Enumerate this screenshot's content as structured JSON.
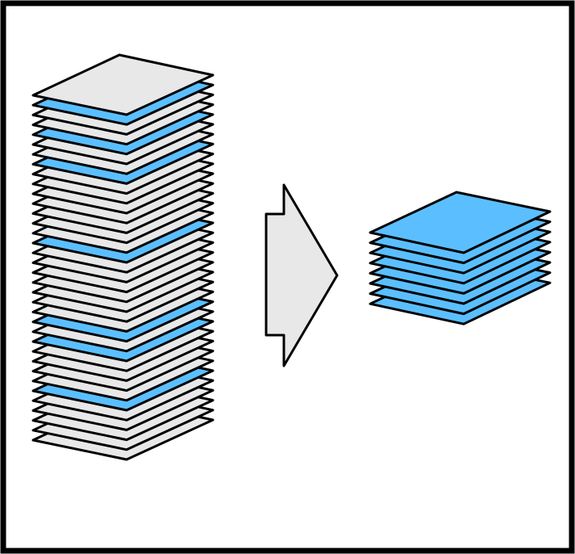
{
  "diagram": {
    "colors": {
      "background": "#ffffff",
      "border": "#000000",
      "sheet_gray": "#e8e8e8",
      "sheet_blue": "#5bbfff",
      "arrow_fill": "#e8e8e8",
      "stroke": "#000000"
    },
    "left_stack": {
      "sheet_count": 36,
      "sheets_top_to_bottom": [
        "gray",
        "blue",
        "gray",
        "gray",
        "blue",
        "gray",
        "gray",
        "blue",
        "gray",
        "gray",
        "gray",
        "gray",
        "gray",
        "gray",
        "gray",
        "blue",
        "gray",
        "gray",
        "gray",
        "gray",
        "gray",
        "gray",
        "gray",
        "blue",
        "gray",
        "blue",
        "gray",
        "gray",
        "gray",
        "gray",
        "blue",
        "gray",
        "gray",
        "gray",
        "gray",
        "gray"
      ]
    },
    "arrow": {
      "direction": "right"
    },
    "right_stack": {
      "sheet_count": 8,
      "sheets_top_to_bottom": [
        "blue",
        "blue",
        "blue",
        "blue",
        "blue",
        "blue",
        "blue",
        "blue"
      ]
    }
  }
}
